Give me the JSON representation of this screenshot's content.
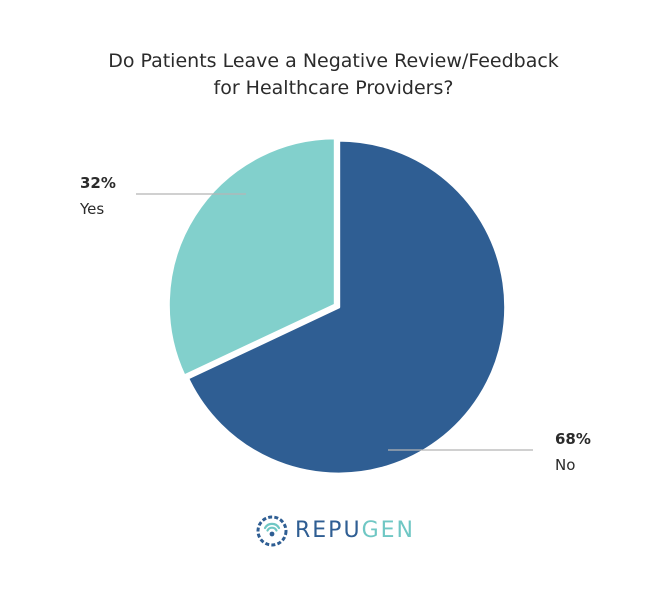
{
  "chart_data": {
    "type": "pie",
    "title_lines": [
      "Do Patients Leave a Negative Review/Feedback",
      "for Healthcare Providers?"
    ],
    "slices": [
      {
        "name": "No",
        "value": 68,
        "label": "68%",
        "color": "#2f5e93"
      },
      {
        "name": "Yes",
        "value": 32,
        "label": "32%",
        "color": "#82d0cc"
      }
    ],
    "start_angle_deg": 0,
    "direction": "clockwise",
    "legend": "none"
  },
  "logo": {
    "part1": "REPU",
    "part2": "GEN",
    "color1": "#2f5e93",
    "color2": "#6fc7c4"
  }
}
